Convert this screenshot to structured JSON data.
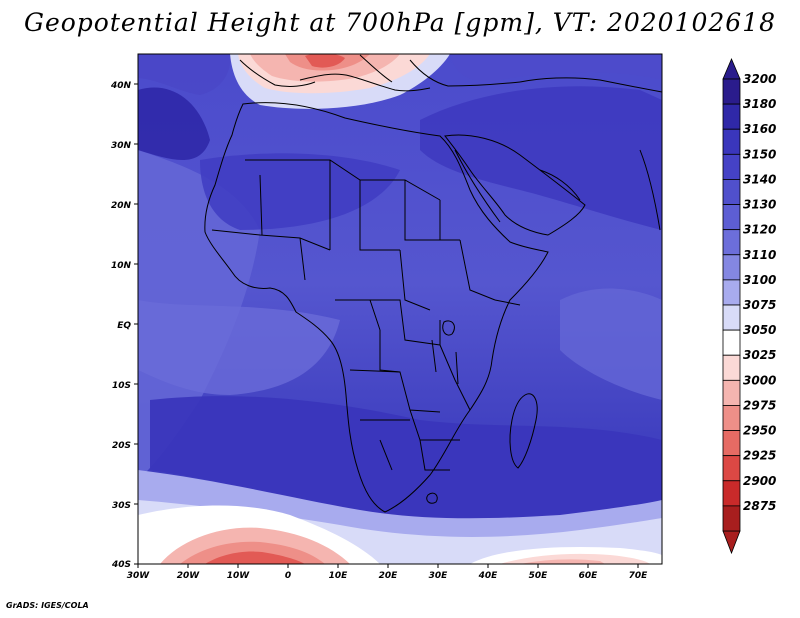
{
  "title": "Geopotential Height at 700hPa [gpm], VT: 2020102618",
  "credit": "GrADS: IGES/COLA",
  "lat_labels": [
    "40N",
    "30N",
    "20N",
    "10N",
    "EQ",
    "10S",
    "20S",
    "30S",
    "40S"
  ],
  "lon_labels": [
    "30W",
    "20W",
    "10W",
    "0",
    "10E",
    "20E",
    "30E",
    "40E",
    "50E",
    "60E",
    "70E"
  ],
  "colorbar": {
    "levels": [
      "3200",
      "3180",
      "3160",
      "3150",
      "3140",
      "3130",
      "3120",
      "3110",
      "3100",
      "3075",
      "3050",
      "3025",
      "3000",
      "2975",
      "2950",
      "2925",
      "2900",
      "2875"
    ],
    "colors": [
      "#2a1c8c",
      "#2f28a8",
      "#3a36bc",
      "#4542c6",
      "#5050cc",
      "#5d5ed4",
      "#6c6eda",
      "#8487e2",
      "#a8abee",
      "#d8dbf8",
      "#ffffff",
      "#fbd9d6",
      "#f5b5b0",
      "#ee8f88",
      "#e66b64",
      "#dc4844",
      "#c92a2a",
      "#a81e1e"
    ]
  },
  "colors": {
    "ocean_base": "#5a5cd2",
    "land_deep": "#3d3abd",
    "high_band": "#2f28a8",
    "low_red": "#e25a55",
    "border": "#000000"
  }
}
